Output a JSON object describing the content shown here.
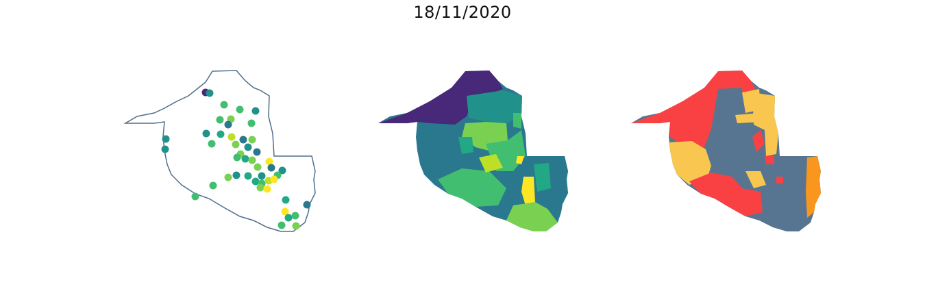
{
  "title": "18/11/2020",
  "colors": {
    "outline": "#4e6d8c",
    "viridis": [
      "#482878",
      "#2a788e",
      "#21918c",
      "#22a884",
      "#42be71",
      "#7ad151",
      "#bddf26",
      "#fde725"
    ],
    "risk": {
      "red": "#f94144",
      "yellow": "#f9c74f",
      "orange": "#f8961e",
      "slate": "#577590"
    }
  },
  "maps": [
    {
      "name": "point-map",
      "style": "outline-with-points"
    },
    {
      "name": "choropleth-viridis",
      "style": "filled-regions"
    },
    {
      "name": "choropleth-risk",
      "style": "filled-regions"
    }
  ]
}
